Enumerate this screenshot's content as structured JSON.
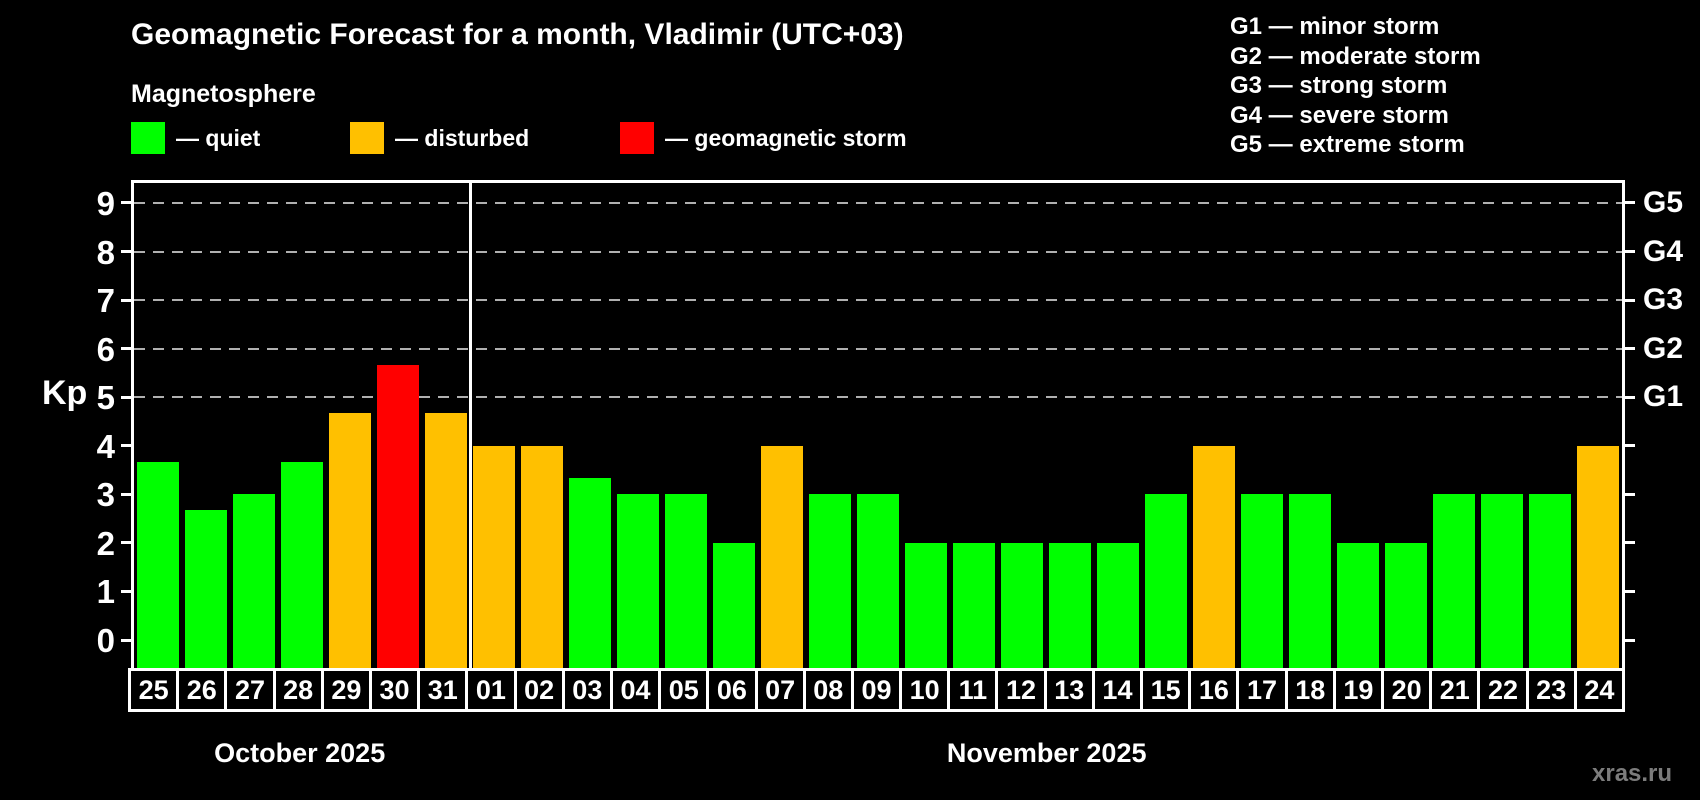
{
  "title": "Geomagnetic Forecast for a month, Vladimir (UTC+03)",
  "subtitle": "Magnetosphere",
  "watermark": "xras.ru",
  "axis": {
    "ylabel": "Kp",
    "yticks": [
      0,
      1,
      2,
      3,
      4,
      5,
      6,
      7,
      8,
      9
    ],
    "ymin": 0,
    "ymax": 9
  },
  "legend": [
    {
      "key": "quiet",
      "text": "— quiet",
      "color": "#00ff00"
    },
    {
      "key": "disturbed",
      "text": "— disturbed",
      "color": "#ffc000"
    },
    {
      "key": "storm",
      "text": "— geomagnetic storm",
      "color": "#ff0000"
    }
  ],
  "storm_scale": [
    {
      "code": "G1",
      "label": "minor storm",
      "kp": 5,
      "text": "G1 — minor storm"
    },
    {
      "code": "G2",
      "label": "moderate storm",
      "kp": 6,
      "text": "G2 — moderate storm"
    },
    {
      "code": "G3",
      "label": "strong storm",
      "kp": 7,
      "text": "G3 — strong storm"
    },
    {
      "code": "G4",
      "label": "severe storm",
      "kp": 8,
      "text": "G4 — severe storm"
    },
    {
      "code": "G5",
      "label": "extreme storm",
      "kp": 9,
      "text": "G5 — extreme storm"
    }
  ],
  "months": [
    {
      "label": "October 2025",
      "days": 7
    },
    {
      "label": "November 2025",
      "days": 24
    }
  ],
  "chart_data": {
    "type": "bar",
    "title": "Geomagnetic Forecast for a month, Vladimir (UTC+03)",
    "xlabel": "",
    "ylabel": "Kp",
    "ylim": [
      0,
      9
    ],
    "yticks": [
      0,
      1,
      2,
      3,
      4,
      5,
      6,
      7,
      8,
      9
    ],
    "gridlines_at": [
      5,
      6,
      7,
      8,
      9
    ],
    "grid": "dashed horizontal at storm levels only",
    "legend_position": "top-left",
    "right_axis_labels": [
      {
        "kp": 5,
        "label": "G1"
      },
      {
        "kp": 6,
        "label": "G2"
      },
      {
        "kp": 7,
        "label": "G3"
      },
      {
        "kp": 8,
        "label": "G4"
      },
      {
        "kp": 9,
        "label": "G5"
      }
    ],
    "bars": [
      {
        "date": "25",
        "month": "October 2025",
        "value": 3.67,
        "status": "quiet"
      },
      {
        "date": "26",
        "month": "October 2025",
        "value": 2.67,
        "status": "quiet"
      },
      {
        "date": "27",
        "month": "October 2025",
        "value": 3.0,
        "status": "quiet"
      },
      {
        "date": "28",
        "month": "October 2025",
        "value": 3.67,
        "status": "quiet"
      },
      {
        "date": "29",
        "month": "October 2025",
        "value": 4.67,
        "status": "disturbed"
      },
      {
        "date": "30",
        "month": "October 2025",
        "value": 5.67,
        "status": "storm"
      },
      {
        "date": "31",
        "month": "October 2025",
        "value": 4.67,
        "status": "disturbed"
      },
      {
        "date": "01",
        "month": "November 2025",
        "value": 4.0,
        "status": "disturbed"
      },
      {
        "date": "02",
        "month": "November 2025",
        "value": 4.0,
        "status": "disturbed"
      },
      {
        "date": "03",
        "month": "November 2025",
        "value": 3.33,
        "status": "quiet"
      },
      {
        "date": "04",
        "month": "November 2025",
        "value": 3.0,
        "status": "quiet"
      },
      {
        "date": "05",
        "month": "November 2025",
        "value": 3.0,
        "status": "quiet"
      },
      {
        "date": "06",
        "month": "November 2025",
        "value": 2.0,
        "status": "quiet"
      },
      {
        "date": "07",
        "month": "November 2025",
        "value": 4.0,
        "status": "disturbed"
      },
      {
        "date": "08",
        "month": "November 2025",
        "value": 3.0,
        "status": "quiet"
      },
      {
        "date": "09",
        "month": "November 2025",
        "value": 3.0,
        "status": "quiet"
      },
      {
        "date": "10",
        "month": "November 2025",
        "value": 2.0,
        "status": "quiet"
      },
      {
        "date": "11",
        "month": "November 2025",
        "value": 2.0,
        "status": "quiet"
      },
      {
        "date": "12",
        "month": "November 2025",
        "value": 2.0,
        "status": "quiet"
      },
      {
        "date": "13",
        "month": "November 2025",
        "value": 2.0,
        "status": "quiet"
      },
      {
        "date": "14",
        "month": "November 2025",
        "value": 2.0,
        "status": "quiet"
      },
      {
        "date": "15",
        "month": "November 2025",
        "value": 3.0,
        "status": "quiet"
      },
      {
        "date": "16",
        "month": "November 2025",
        "value": 4.0,
        "status": "disturbed"
      },
      {
        "date": "17",
        "month": "November 2025",
        "value": 3.0,
        "status": "quiet"
      },
      {
        "date": "18",
        "month": "November 2025",
        "value": 3.0,
        "status": "quiet"
      },
      {
        "date": "19",
        "month": "November 2025",
        "value": 2.0,
        "status": "quiet"
      },
      {
        "date": "20",
        "month": "November 2025",
        "value": 2.0,
        "status": "quiet"
      },
      {
        "date": "21",
        "month": "November 2025",
        "value": 3.0,
        "status": "quiet"
      },
      {
        "date": "22",
        "month": "November 2025",
        "value": 3.0,
        "status": "quiet"
      },
      {
        "date": "23",
        "month": "November 2025",
        "value": 3.0,
        "status": "quiet"
      },
      {
        "date": "24",
        "month": "November 2025",
        "value": 4.0,
        "status": "disturbed"
      }
    ]
  }
}
